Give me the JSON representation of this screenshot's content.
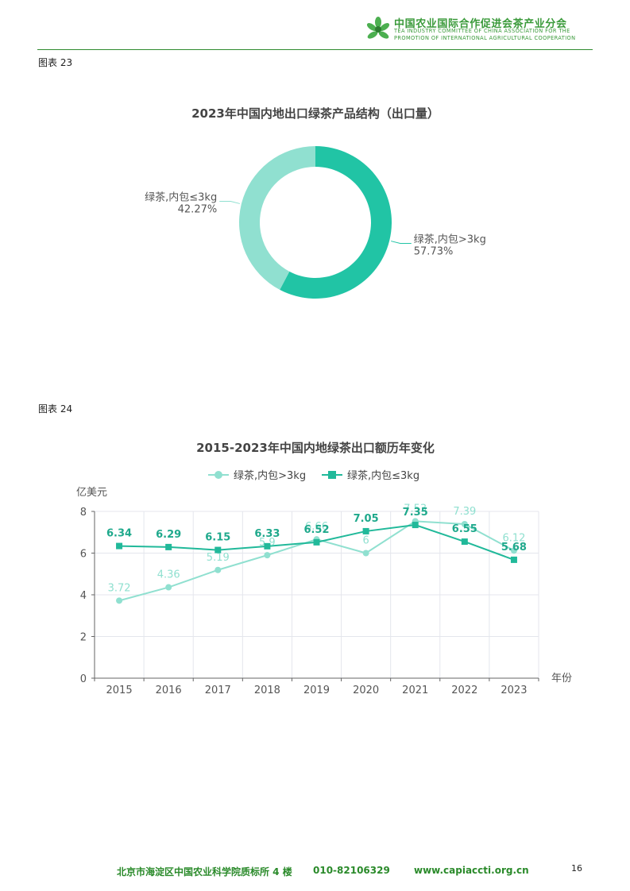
{
  "header": {
    "org_cn": "中国农业国际合作促进会茶产业分会",
    "org_en_line1": "TEA INDUSTRY COMMITTEE OF CHINA ASSOCIATION FOR THE",
    "org_en_line2": "PROMOTION OF INTERNATIONAL AGRICULTURAL COOPERATION",
    "brand_color": "#3a9a3a"
  },
  "figures": {
    "fig23_label": "图表 23",
    "fig24_label": "图表 24"
  },
  "chart_data": [
    {
      "type": "pie",
      "style": "donut",
      "title": "2023年中国内地出口绿茶产品结构（出口量）",
      "slices": [
        {
          "name": "绿茶,内包>3kg",
          "value": 57.73,
          "label": "57.73%",
          "color": "#21c4a5"
        },
        {
          "name": "绿茶,内包≤3kg",
          "value": 42.27,
          "label": "42.27%",
          "color": "#90e0d0"
        }
      ]
    },
    {
      "type": "line",
      "title": "2015-2023年中国内地绿茶出口额历年变化",
      "ylabel": "亿美元",
      "xlabel": "年份",
      "ylim": [
        0,
        8
      ],
      "yticks": [
        "0",
        "2",
        "4",
        "6",
        "8"
      ],
      "categories": [
        "2015",
        "2016",
        "2017",
        "2018",
        "2019",
        "2020",
        "2021",
        "2022",
        "2023"
      ],
      "legend_position": "top-center",
      "grid": true,
      "series": [
        {
          "name": "绿茶,内包>3kg",
          "color": "#90e0d0",
          "marker": "circle",
          "values": [
            3.72,
            4.36,
            5.19,
            5.9,
            6.66,
            6,
            7.53,
            7.39,
            6.12
          ],
          "labels": [
            "3.72",
            "4.36",
            "5.19",
            "5.9",
            "6.66",
            "6",
            "7.53",
            "7.39",
            "6.12"
          ]
        },
        {
          "name": "绿茶,内包≤3kg",
          "color": "#21b99a",
          "marker": "square",
          "values": [
            6.34,
            6.29,
            6.15,
            6.33,
            6.52,
            7.05,
            7.35,
            6.55,
            5.68
          ],
          "labels": [
            "6.34",
            "6.29",
            "6.15",
            "6.33",
            "6.52",
            "7.05",
            "7.35",
            "6.55",
            "5.68"
          ]
        }
      ]
    }
  ],
  "footer": {
    "address": "北京市海淀区中国农业科学院质标所 4 楼",
    "phone": "010-82106329",
    "website": "www.capiaccti.org.cn",
    "page_number": "16"
  }
}
